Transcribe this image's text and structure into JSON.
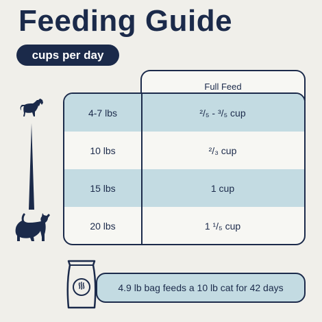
{
  "title": "Feeding Guide",
  "unit_pill": "cups per day",
  "table": {
    "column_header": "Full Feed",
    "rows": [
      {
        "weight": "4-7 lbs",
        "amount": "²/₅ - ³/₅ cup"
      },
      {
        "weight": "10 lbs",
        "amount": "²/₃ cup"
      },
      {
        "weight": "15 lbs",
        "amount": "1 cup"
      },
      {
        "weight": "20 lbs",
        "amount": "1 ¹/₅ cup"
      }
    ]
  },
  "callout": "4.9 lb bag feeds a 10 lb cat for 42 days",
  "colors": {
    "navy": "#1b2a4a",
    "row_shade": "#c3dbe2",
    "background": "#f0efea"
  },
  "icons": [
    "small-cat-icon",
    "large-cat-icon",
    "weight-scale-wedge-icon",
    "food-bag-icon"
  ]
}
